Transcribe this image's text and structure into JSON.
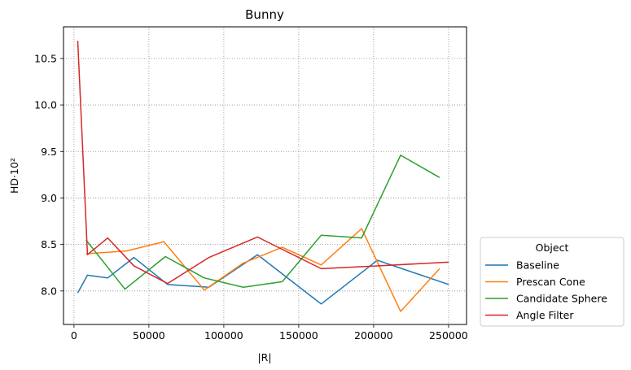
{
  "chart_data": {
    "type": "line",
    "title": "Bunny",
    "xlabel": "|R|",
    "ylabel": "HD·10²",
    "xlim": [
      -7000,
      262000
    ],
    "ylim": [
      7.64,
      10.84
    ],
    "xticks": [
      0,
      50000,
      100000,
      150000,
      200000,
      250000
    ],
    "xtick_labels": [
      "0",
      "50000",
      "100000",
      "150000",
      "200000",
      "250000"
    ],
    "yticks": [
      8.0,
      8.5,
      9.0,
      9.5,
      10.0,
      10.5
    ],
    "ytick_labels": [
      "8.0",
      "8.5",
      "9.0",
      "9.5",
      "10.0",
      "10.5"
    ],
    "grid": true,
    "legend": {
      "title": "Object",
      "placement": "outside lower right"
    },
    "series": [
      {
        "name": "Baseline",
        "color": "#1f77b4",
        "x": [
          2500,
          9000,
          22500,
          40000,
          62500,
          90000,
          122500,
          165000,
          202500,
          250000
        ],
        "y": [
          7.98,
          8.17,
          8.14,
          8.36,
          8.07,
          8.04,
          8.39,
          7.86,
          8.33,
          8.07
        ]
      },
      {
        "name": "Prescan Cone",
        "color": "#ff7f0e",
        "x": [
          8000,
          35000,
          60000,
          87000,
          113000,
          139000,
          165000,
          192000,
          218000,
          244000
        ],
        "y": [
          8.4,
          8.43,
          8.53,
          8.01,
          8.3,
          8.47,
          8.28,
          8.67,
          7.78,
          8.24
        ]
      },
      {
        "name": "Candidate Sphere",
        "color": "#2ca02c",
        "x": [
          8000,
          34000,
          61000,
          87000,
          113000,
          139000,
          165000,
          192000,
          218000,
          244000
        ],
        "y": [
          8.55,
          8.02,
          8.37,
          8.14,
          8.04,
          8.1,
          8.6,
          8.57,
          9.46,
          9.22
        ]
      },
      {
        "name": "Angle Filter",
        "color": "#d62728",
        "x": [
          2500,
          9000,
          22500,
          40000,
          62500,
          90000,
          122500,
          165000,
          202500,
          250000
        ],
        "y": [
          10.69,
          8.39,
          8.57,
          8.27,
          8.08,
          8.36,
          8.58,
          8.24,
          8.27,
          8.31
        ]
      }
    ]
  }
}
